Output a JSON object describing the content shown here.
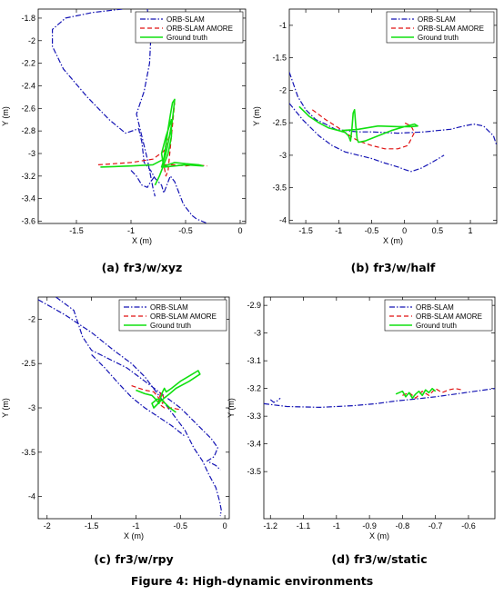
{
  "figure_caption": "Figure 4: High-dynamic environments",
  "colors": {
    "orb_slam": "#1414b4",
    "orb_slam_amore": "#e01010",
    "ground_truth": "#10e010"
  },
  "chart_data": [
    {
      "type": "line",
      "caption": "(a) fr3/w/xyz",
      "xlabel": "X (m)",
      "ylabel": "Y (m)",
      "xlim": [
        -1.85,
        0.05
      ],
      "ylim": [
        -3.62,
        -1.72
      ],
      "xticks": [
        -1.5,
        -1,
        -0.5,
        0
      ],
      "xtick_labels": [
        "-1.5",
        "-1",
        "-0.5",
        "0"
      ],
      "yticks": [
        -1.8,
        -2,
        -2.2,
        -2.4,
        -2.6,
        -2.8,
        -3,
        -3.2,
        -3.4,
        -3.6
      ],
      "ytick_labels": [
        "-1.8",
        "-2",
        "-2.2",
        "-2.4",
        "-2.6",
        "-2.8",
        "-3",
        "-3.2",
        "-3.4",
        "-3.6"
      ],
      "legend_position": "top-right",
      "series": [
        {
          "name": "ORB-SLAM",
          "style": "dashdot",
          "x": [
            -1.08,
            -1.35,
            -1.6,
            -1.72,
            -1.72,
            -1.62,
            -1.4,
            -1.2,
            -1.05,
            -0.93,
            -0.9,
            -0.88,
            -0.82,
            -0.78,
            -0.72,
            -0.7,
            -0.68,
            -0.64,
            -0.6,
            -0.56,
            -0.52,
            -0.48,
            -0.44,
            -0.4,
            -0.35,
            -0.3
          ],
          "y": [
            -1.72,
            -1.75,
            -1.8,
            -1.9,
            -2.05,
            -2.25,
            -2.5,
            -2.7,
            -2.82,
            -2.78,
            -2.9,
            -3.08,
            -3.15,
            -3.22,
            -3.28,
            -3.35,
            -3.3,
            -3.2,
            -3.25,
            -3.35,
            -3.45,
            -3.5,
            -3.55,
            -3.58,
            -3.6,
            -3.62
          ]
        },
        {
          "name": "ORB-SLAM",
          "style": "dashdot",
          "x": [
            -0.85,
            -0.82,
            -0.83,
            -0.88,
            -0.95,
            -0.9,
            -0.85,
            -0.82,
            -0.8,
            -0.78
          ],
          "y": [
            -1.72,
            -2.0,
            -2.2,
            -2.45,
            -2.65,
            -2.85,
            -3.05,
            -3.2,
            -3.3,
            -3.38
          ]
        },
        {
          "name": "ORB-SLAM",
          "style": "dashdot",
          "x": [
            -1.0,
            -0.95,
            -0.9,
            -0.85,
            -0.82,
            -0.78
          ],
          "y": [
            -3.15,
            -3.2,
            -3.28,
            -3.3,
            -3.25,
            -3.2
          ]
        },
        {
          "name": "ORB-SLAM AMORE",
          "style": "dashed",
          "x": [
            -1.3,
            -1.0,
            -0.8,
            -0.7,
            -0.65,
            -0.62,
            -0.6,
            -0.62,
            -0.64,
            -0.66,
            -0.68,
            -0.7,
            -0.6,
            -0.5,
            -0.4,
            -0.3
          ],
          "y": [
            -3.1,
            -3.08,
            -3.05,
            -2.98,
            -2.85,
            -2.7,
            -2.55,
            -2.75,
            -2.95,
            -3.15,
            -3.2,
            -3.1,
            -3.1,
            -3.11,
            -3.1,
            -3.11
          ]
        },
        {
          "name": "Ground truth",
          "style": "solid",
          "x": [
            -1.28,
            -1.0,
            -0.8,
            -0.7,
            -0.68,
            -0.66,
            -0.64,
            -0.62,
            -0.6,
            -0.62,
            -0.65,
            -0.68,
            -0.72,
            -0.66,
            -0.6,
            -0.5,
            -0.38,
            -0.34,
            -0.5,
            -0.7,
            -0.72,
            -0.68,
            -0.63,
            -0.63,
            -0.66,
            -0.7,
            -0.74,
            -0.78
          ],
          "y": [
            -3.12,
            -3.11,
            -3.1,
            -3.05,
            -2.92,
            -2.78,
            -2.66,
            -2.55,
            -2.52,
            -2.7,
            -2.86,
            -3.0,
            -3.12,
            -3.1,
            -3.08,
            -3.09,
            -3.1,
            -3.11,
            -3.1,
            -3.12,
            -3.0,
            -2.85,
            -2.7,
            -2.85,
            -3.0,
            -3.1,
            -3.2,
            -3.28
          ]
        }
      ]
    },
    {
      "type": "line",
      "caption": "(b) fr3/w/half",
      "xlabel": "X (m)",
      "ylabel": "Y (m)",
      "xlim": [
        -1.75,
        1.4
      ],
      "ylim": [
        -4.05,
        -0.75
      ],
      "xticks": [
        -1.5,
        -1,
        -0.5,
        0,
        0.5,
        1
      ],
      "xtick_labels": [
        "-1.5",
        "-1",
        "-0.5",
        "0",
        "0.5",
        "1"
      ],
      "yticks": [
        -1,
        -1.5,
        -2,
        -2.5,
        -3,
        -3.5,
        -4
      ],
      "ytick_labels": [
        "-1",
        "-1.5",
        "-2",
        "-2.5",
        "-3",
        "-3.5",
        "-4"
      ],
      "legend_position": "top-right",
      "series": [
        {
          "name": "ORB-SLAM",
          "style": "dashdot",
          "x": [
            -1.75,
            -1.62,
            -1.5,
            -1.35,
            -1.2,
            -1.05,
            -0.9,
            -0.7,
            -0.5,
            -0.3,
            -0.1,
            0.1,
            0.3,
            0.5,
            0.7,
            0.9,
            1.05,
            1.2,
            1.35,
            1.4
          ],
          "y": [
            -1.72,
            -2.1,
            -2.3,
            -2.45,
            -2.52,
            -2.6,
            -2.62,
            -2.64,
            -2.64,
            -2.65,
            -2.66,
            -2.65,
            -2.64,
            -2.62,
            -2.6,
            -2.55,
            -2.52,
            -2.55,
            -2.7,
            -2.85
          ]
        },
        {
          "name": "ORB-SLAM",
          "style": "dashdot",
          "x": [
            -1.75,
            -1.55,
            -1.3,
            -1.1,
            -0.9,
            -0.7,
            -0.5,
            -0.3,
            -0.1,
            0.0,
            0.1,
            0.25,
            0.4,
            0.6
          ],
          "y": [
            -2.2,
            -2.45,
            -2.7,
            -2.85,
            -2.95,
            -3.0,
            -3.05,
            -3.12,
            -3.18,
            -3.22,
            -3.25,
            -3.2,
            -3.12,
            -3.0
          ]
        },
        {
          "name": "ORB-SLAM AMORE",
          "style": "dashed",
          "x": [
            -1.4,
            -1.2,
            -1.0,
            -0.9,
            -0.8,
            -0.7,
            -0.5,
            -0.3,
            -0.1,
            0.05,
            0.15,
            0.1,
            0.0
          ],
          "y": [
            -2.3,
            -2.45,
            -2.58,
            -2.65,
            -2.72,
            -2.78,
            -2.85,
            -2.9,
            -2.9,
            -2.85,
            -2.65,
            -2.55,
            -2.5
          ]
        },
        {
          "name": "Ground truth",
          "style": "solid",
          "x": [
            -1.6,
            -1.45,
            -1.3,
            -1.15,
            -1.0,
            -0.9,
            -0.85,
            -0.82,
            -0.8,
            -0.78,
            -0.76,
            -0.74,
            -0.72,
            -0.7,
            -0.6,
            -0.4,
            -0.2,
            0.0,
            0.15,
            0.2,
            0.1,
            -0.1,
            -0.4,
            -0.7,
            -0.95
          ],
          "y": [
            -2.25,
            -2.4,
            -2.5,
            -2.58,
            -2.62,
            -2.65,
            -2.7,
            -2.78,
            -2.6,
            -2.35,
            -2.3,
            -2.55,
            -2.75,
            -2.8,
            -2.78,
            -2.7,
            -2.62,
            -2.56,
            -2.52,
            -2.55,
            -2.56,
            -2.56,
            -2.55,
            -2.6,
            -2.62
          ]
        }
      ]
    },
    {
      "type": "line",
      "caption": "(c) fr3/w/rpy",
      "xlabel": "X (m)",
      "ylabel": "Y (m)",
      "xlim": [
        -2.1,
        0.05
      ],
      "ylim": [
        -4.25,
        -1.75
      ],
      "xticks": [
        -2,
        -1.5,
        -1,
        -0.5,
        0
      ],
      "xtick_labels": [
        "-2",
        "-1.5",
        "-1",
        "-0.5",
        "0"
      ],
      "yticks": [
        -2,
        -2.5,
        -3,
        -3.5,
        -4
      ],
      "ytick_labels": [
        "-2",
        "-2.5",
        "-3",
        "-3.5",
        "-4"
      ],
      "legend_position": "top-right",
      "series": [
        {
          "name": "ORB-SLAM",
          "style": "dashdot",
          "x": [
            -2.1,
            -1.8,
            -1.5,
            -1.25,
            -1.05,
            -0.9,
            -0.75,
            -0.6,
            -0.45,
            -0.35,
            -0.25,
            -0.18,
            -0.1,
            -0.06,
            -0.04,
            -0.05
          ],
          "y": [
            -1.78,
            -1.95,
            -2.15,
            -2.35,
            -2.5,
            -2.65,
            -2.85,
            -3.05,
            -3.25,
            -3.45,
            -3.6,
            -3.75,
            -3.9,
            -4.05,
            -4.15,
            -4.22
          ]
        },
        {
          "name": "ORB-SLAM",
          "style": "dashdot",
          "x": [
            -1.9,
            -1.7,
            -1.6,
            -1.5,
            -1.3,
            -1.1,
            -0.9,
            -0.7,
            -0.5,
            -0.3,
            -0.15,
            -0.08,
            -0.12,
            -0.2,
            -0.1,
            -0.05
          ],
          "y": [
            -1.75,
            -1.9,
            -2.2,
            -2.35,
            -2.45,
            -2.55,
            -2.7,
            -2.85,
            -3.0,
            -3.2,
            -3.35,
            -3.45,
            -3.55,
            -3.6,
            -3.65,
            -3.7
          ]
        },
        {
          "name": "ORB-SLAM",
          "style": "dashdot",
          "x": [
            -1.5,
            -1.35,
            -1.2,
            -1.05,
            -0.9,
            -0.75,
            -0.6,
            -0.45
          ],
          "y": [
            -2.4,
            -2.55,
            -2.72,
            -2.88,
            -3.0,
            -3.1,
            -3.2,
            -3.32
          ]
        },
        {
          "name": "ORB-SLAM AMORE",
          "style": "dashed",
          "x": [
            -1.05,
            -0.9,
            -0.8,
            -0.75,
            -0.7,
            -0.68,
            -0.72,
            -0.75,
            -0.68,
            -0.6,
            -0.5
          ],
          "y": [
            -2.75,
            -2.8,
            -2.82,
            -2.88,
            -2.95,
            -2.9,
            -2.82,
            -2.95,
            -3.0,
            -3.0,
            -3.02
          ]
        },
        {
          "name": "Ground truth",
          "style": "solid",
          "x": [
            -1.0,
            -0.9,
            -0.82,
            -0.78,
            -0.74,
            -0.72,
            -0.7,
            -0.68,
            -0.66,
            -0.6,
            -0.5,
            -0.4,
            -0.3,
            -0.28,
            -0.4,
            -0.55,
            -0.62,
            -0.72,
            -0.8,
            -0.82,
            -0.76,
            -0.7,
            -0.62,
            -0.55
          ],
          "y": [
            -2.8,
            -2.84,
            -2.86,
            -2.9,
            -2.95,
            -2.88,
            -2.82,
            -2.78,
            -2.82,
            -2.78,
            -2.7,
            -2.64,
            -2.58,
            -2.62,
            -2.7,
            -2.78,
            -2.84,
            -2.92,
            -3.0,
            -2.95,
            -2.9,
            -2.92,
            -3.0,
            -3.05
          ]
        }
      ]
    },
    {
      "type": "line",
      "caption": "(d) fr3/w/static",
      "xlabel": "X (m)",
      "ylabel": "Y (m)",
      "xlim": [
        -1.22,
        -0.52
      ],
      "ylim": [
        -3.67,
        -2.87
      ],
      "xticks": [
        -1.2,
        -1.1,
        -1,
        -0.9,
        -0.8,
        -0.7,
        -0.6
      ],
      "xtick_labels": [
        "-1.2",
        "-1.1",
        "-1",
        "-0.9",
        "-0.8",
        "-0.7",
        "-0.6"
      ],
      "yticks": [
        -2.9,
        -3,
        -3.1,
        -3.2,
        -3.3,
        -3.4,
        -3.5
      ],
      "ytick_labels": [
        "-2.9",
        "-3",
        "-3.1",
        "-3.2",
        "-3.3",
        "-3.4",
        "-3.5"
      ],
      "legend_position": "top-right",
      "series": [
        {
          "name": "ORB-SLAM",
          "style": "dashdot",
          "x": [
            -1.22,
            -1.15,
            -1.05,
            -0.95,
            -0.88,
            -0.82,
            -0.76,
            -0.7,
            -0.64,
            -0.58,
            -0.52
          ],
          "y": [
            -3.255,
            -3.265,
            -3.268,
            -3.262,
            -3.255,
            -3.245,
            -3.238,
            -3.23,
            -3.22,
            -3.21,
            -3.2
          ]
        },
        {
          "name": "ORB-SLAM",
          "style": "dashdot",
          "x": [
            -1.2,
            -1.19,
            -1.18,
            -1.17
          ],
          "y": [
            -3.24,
            -3.25,
            -3.245,
            -3.235
          ]
        },
        {
          "name": "ORB-SLAM AMORE",
          "style": "dashed",
          "x": [
            -0.8,
            -0.78,
            -0.76,
            -0.74,
            -0.72,
            -0.7,
            -0.68,
            -0.66,
            -0.64,
            -0.62
          ],
          "y": [
            -3.225,
            -3.215,
            -3.235,
            -3.21,
            -3.225,
            -3.2,
            -3.215,
            -3.205,
            -3.2,
            -3.205
          ]
        },
        {
          "name": "Ground truth",
          "style": "solid",
          "x": [
            -0.82,
            -0.8,
            -0.79,
            -0.78,
            -0.77,
            -0.76,
            -0.75,
            -0.74,
            -0.73,
            -0.72,
            -0.71,
            -0.7
          ],
          "y": [
            -3.22,
            -3.21,
            -3.23,
            -3.215,
            -3.235,
            -3.22,
            -3.21,
            -3.225,
            -3.205,
            -3.215,
            -3.2,
            -3.21
          ]
        }
      ]
    }
  ]
}
